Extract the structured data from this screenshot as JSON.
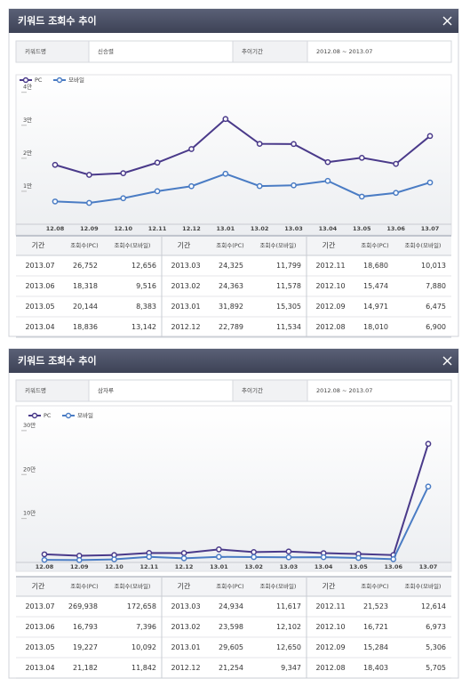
{
  "panels": [
    {
      "title": "키워드 조회수 추이",
      "info": {
        "keyword_label": "키워드명",
        "keyword": "신승렬",
        "period_label": "추이기간",
        "period": "2012.08 ~ 2013.07"
      },
      "table": {
        "headers": [
          "기간",
          "조회수(PC)",
          "조회수(모바일)"
        ],
        "periods": [
          "2013.07",
          "2013.06",
          "2013.05",
          "2013.04",
          "2013.03",
          "2013.02",
          "2013.01",
          "2012.12",
          "2012.11",
          "2012.10",
          "2012.09",
          "2012.08"
        ]
      }
    },
    {
      "title": "키워드 조회수 추이",
      "info": {
        "keyword_label": "키워드명",
        "keyword": "삼자루",
        "period_label": "추이기간",
        "period": "2012.08 ~ 2013.07"
      },
      "table": {
        "headers": [
          "기간",
          "조회수(PC)",
          "조회수(모바일)"
        ],
        "periods": [
          "2013.07",
          "2013.06",
          "2013.05",
          "2013.04",
          "2013.03",
          "2013.02",
          "2013.01",
          "2012.12",
          "2012.11",
          "2012.10",
          "2012.09",
          "2012.08"
        ]
      }
    }
  ],
  "chart_data": [
    {
      "type": "line",
      "legend": "upper left",
      "categories": [
        "12.08",
        "12.09",
        "12.10",
        "12.11",
        "12.12",
        "13.01",
        "13.02",
        "13.03",
        "13.04",
        "13.05",
        "13.06",
        "13.07"
      ],
      "series": [
        {
          "name": "PC",
          "color": "#4a3a8a",
          "values": [
            18010,
            14971,
            15474,
            18680,
            22789,
            31892,
            24363,
            24325,
            18836,
            20144,
            18318,
            26752
          ],
          "value_labels": [
            "18,010",
            "14,971",
            "15,474",
            "18,680",
            "22,789",
            "31,892",
            "24,363",
            "24,325",
            "18,836",
            "20,144",
            "18,318",
            "26,752"
          ]
        },
        {
          "name": "모바일",
          "color": "#4a7cc4",
          "values": [
            6900,
            6475,
            7880,
            10013,
            11534,
            15305,
            11578,
            11799,
            13142,
            8383,
            9516,
            12656
          ],
          "value_labels": [
            "6,900",
            "6,475",
            "7,880",
            "10,013",
            "11,534",
            "15,305",
            "11,578",
            "11,799",
            "13,142",
            "8,383",
            "9,516",
            "12,656"
          ]
        }
      ],
      "ylim": [
        0,
        41000
      ],
      "yticks": [
        {
          "value": 10000,
          "label": "1만"
        },
        {
          "value": 20000,
          "label": "2만"
        },
        {
          "value": 30000,
          "label": "3만"
        },
        {
          "value": 40000,
          "label": "4만"
        }
      ]
    },
    {
      "type": "line",
      "legend": "upper left",
      "categories": [
        "12.08",
        "12.09",
        "12.10",
        "12.11",
        "12.12",
        "13.01",
        "13.02",
        "13.03",
        "13.04",
        "13.05",
        "13.06",
        "13.07"
      ],
      "series": [
        {
          "name": "PC",
          "color": "#4a3a8a",
          "values": [
            18403,
            15284,
            16721,
            21523,
            21254,
            29605,
            23598,
            24934,
            21182,
            19227,
            16793,
            269938
          ],
          "value_labels": [
            "18,403",
            "15,284",
            "16,721",
            "21,523",
            "21,254",
            "29,605",
            "23,598",
            "24,934",
            "21,182",
            "19,227",
            "16,793",
            "269,938"
          ]
        },
        {
          "name": "모바일",
          "color": "#4a7cc4",
          "values": [
            5705,
            5306,
            6973,
            12614,
            9347,
            12650,
            12102,
            11617,
            11842,
            10092,
            7396,
            172658
          ],
          "value_labels": [
            "5,705",
            "5,306",
            "6,973",
            "12,614",
            "9,347",
            "12,650",
            "12,102",
            "11,617",
            "11,842",
            "10,092",
            "7,396",
            "172,658"
          ]
        }
      ],
      "ylim": [
        0,
        320000
      ],
      "yticks": [
        {
          "value": 100000,
          "label": "10만"
        },
        {
          "value": 200000,
          "label": "20만"
        },
        {
          "value": 300000,
          "label": "30만"
        }
      ]
    }
  ]
}
